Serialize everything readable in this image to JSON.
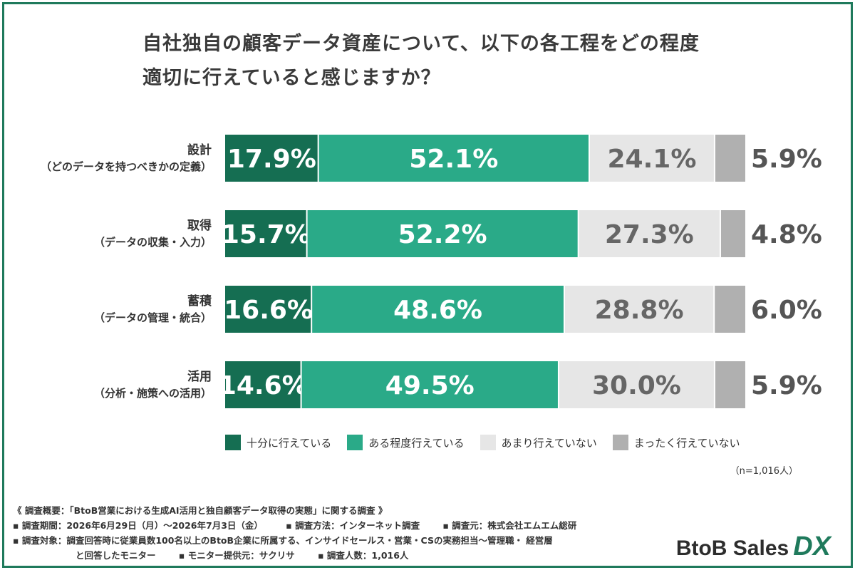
{
  "title_lines": [
    "自社独自の顧客データ資産について、以下の各工程をどの程度",
    "適切に行えていると感じますか？"
  ],
  "chart_data": {
    "type": "bar",
    "stacked": true,
    "orientation": "horizontal",
    "categories": [
      {
        "label": "設計",
        "sublabel": "（どのデータを持つべきかの定義）"
      },
      {
        "label": "取得",
        "sublabel": "（データの収集・入力）"
      },
      {
        "label": "蓄積",
        "sublabel": "（データの管理・統合）"
      },
      {
        "label": "活用",
        "sublabel": "（分析・施策への活用）"
      }
    ],
    "series": [
      {
        "name": "十分に行えている",
        "color": "#156e52",
        "text_color": "#ffffff",
        "values": [
          17.9,
          15.7,
          16.6,
          14.6
        ]
      },
      {
        "name": "ある程度行えている",
        "color": "#2aaa88",
        "text_color": "#ffffff",
        "values": [
          52.1,
          52.2,
          48.6,
          49.5
        ]
      },
      {
        "name": "あまり行えていない",
        "color": "#e6e6e6",
        "text_color": "#666666",
        "values": [
          24.1,
          27.3,
          28.8,
          30.0
        ]
      },
      {
        "name": "まったく行えていない",
        "color": "#b0b0b0",
        "text_color": "#555555",
        "values": [
          5.9,
          4.8,
          6.0,
          5.9
        ]
      }
    ],
    "value_suffix": "%",
    "xlim": [
      0,
      100
    ]
  },
  "n_note": "（n=1,016人）",
  "footer": {
    "heading": "《 調査概要：「BtoB営業における生成AI活用と独自顧客データ取得の実態」に関する調査 》",
    "period": "▪ 調査期間：2026年6月29日（月）〜2026年7月3日（金）",
    "method": "▪ 調査方法：インターネット調査",
    "org": "▪ 調査元：株式会社エムエム総研",
    "target_line1": "▪ 調査対象：調査回答時に従業員数100名以上のBtoB企業に所属する、インサイドセールス・営業・CSの実務担当〜管理職・ 経営層",
    "target_line2": "と回答したモニター",
    "provider": "▪ モニター提供元：サクリサ",
    "count": "▪ 調査人数：1,016人"
  },
  "logo": {
    "main": "BtoB Sales",
    "accent": "DX"
  }
}
